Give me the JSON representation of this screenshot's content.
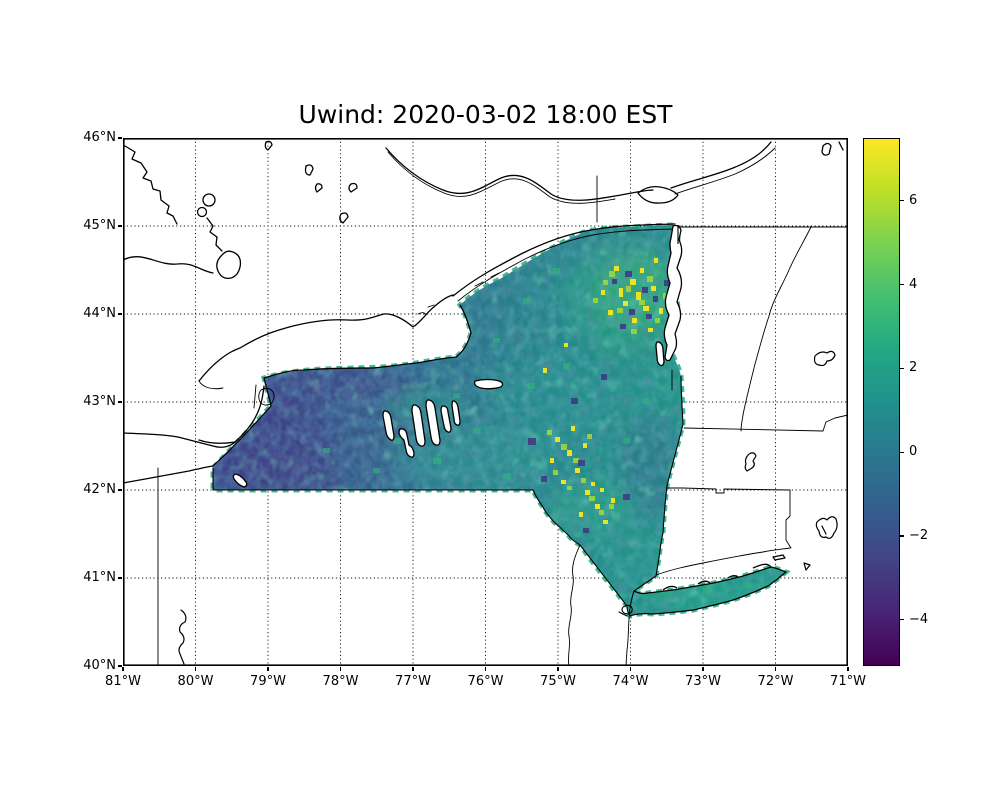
{
  "chart_data": {
    "type": "heatmap",
    "title": "Uwind: 2020-03-02 18:00 EST",
    "variable": "Uwind (eastward wind component)",
    "timestamp": "2020-03-02 18:00 EST",
    "region": "New York State on a lat/lon basemap with neighboring state and Canadian borders, Great Lakes, Finger Lakes, Lake Champlain and Long Island",
    "grid": "dotted black graticule every 1 degree",
    "x_axis": {
      "ticks": [
        "81°W",
        "80°W",
        "79°W",
        "78°W",
        "77°W",
        "76°W",
        "75°W",
        "74°W",
        "73°W",
        "72°W",
        "71°W"
      ],
      "range_deg": [
        -81,
        -71
      ]
    },
    "y_axis": {
      "ticks": [
        "46°N",
        "45°N",
        "44°N",
        "43°N",
        "42°N",
        "41°N",
        "40°N"
      ],
      "range_deg": [
        40,
        46
      ]
    },
    "colorbar": {
      "colormap": "viridis",
      "vmin": -5.1,
      "vmax": 7.5,
      "ticks": [
        "6",
        "4",
        "2",
        "0",
        "−2",
        "−4"
      ],
      "tick_values": [
        6,
        4,
        2,
        0,
        -2,
        -4
      ],
      "stops": [
        "#fde725",
        "#bddf26",
        "#7ad151",
        "#44bf70",
        "#22a884",
        "#21918c",
        "#2a788e",
        "#355f8d",
        "#414487",
        "#482475",
        "#440154"
      ]
    },
    "field_pattern": "negative (dark blue/purple) winds over western NY and the Lake Ontario south shore; near-zero to positive teal over central NY, Hudson valley and Long Island; strong positive yellow speckles over the Adirondacks, central Tug Hill and the Catskills"
  },
  "colors": {
    "background": "#ffffff",
    "linework": "#000000",
    "ny_boundary_dash": "#25ab82",
    "field_base_west": "#3c4c8a",
    "field_base_east": "#22998a"
  }
}
